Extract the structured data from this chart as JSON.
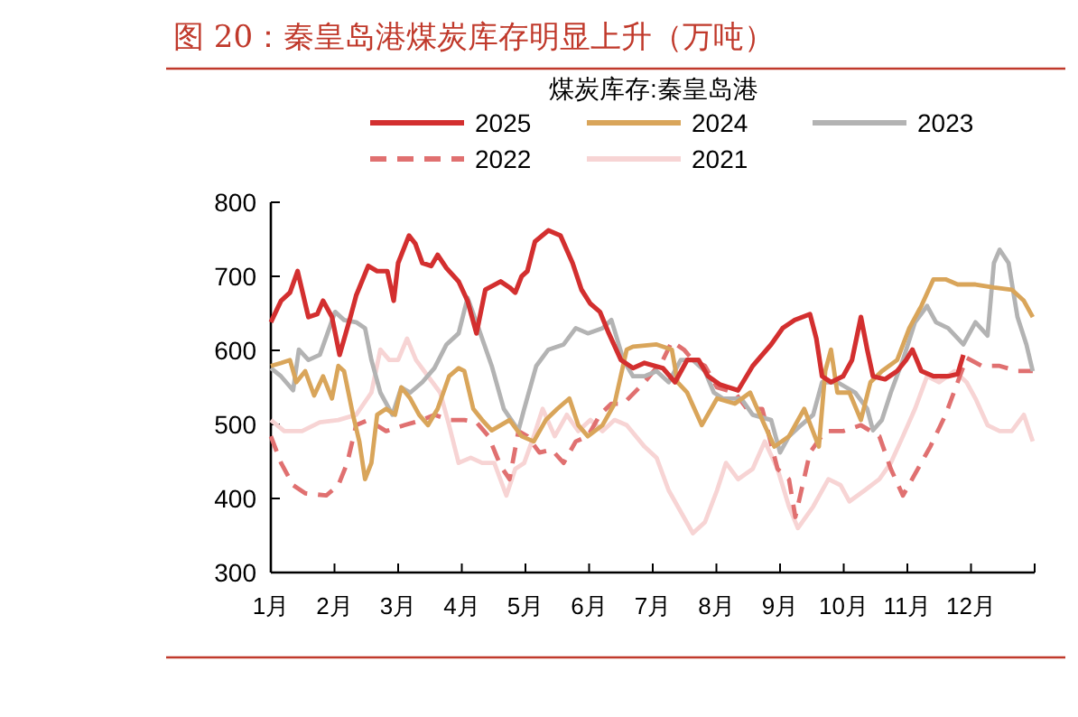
{
  "chart_data": {
    "type": "line",
    "title": "图 20：秦皇岛港煤炭库存明显上升（万吨）",
    "legend_title": "煤炭库存:秦皇岛港",
    "legend": "top",
    "grid": false,
    "marker": "none",
    "xlim": [
      1,
      13
    ],
    "xticks": [
      {
        "value": 1,
        "label": "1月"
      },
      {
        "value": 2,
        "label": "2月"
      },
      {
        "value": 3,
        "label": "3月"
      },
      {
        "value": 4,
        "label": "4月"
      },
      {
        "value": 5,
        "label": "5月"
      },
      {
        "value": 6,
        "label": "6月"
      },
      {
        "value": 7,
        "label": "7月"
      },
      {
        "value": 8,
        "label": "8月"
      },
      {
        "value": 9,
        "label": "9月"
      },
      {
        "value": 10,
        "label": "10月"
      },
      {
        "value": 11,
        "label": "11月"
      },
      {
        "value": 12,
        "label": "12月"
      },
      {
        "value": 13,
        "label": null
      }
    ],
    "ylim": [
      300,
      800
    ],
    "yticks": [
      300,
      400,
      500,
      600,
      700,
      800
    ],
    "series": [
      {
        "name": "2025",
        "color": "#d32f2f",
        "line_style": "solid",
        "x": [
          1,
          1.16,
          1.3,
          1.42,
          1.59,
          1.73,
          1.82,
          1.96,
          2.08,
          2.25,
          2.34,
          2.53,
          2.67,
          2.83,
          2.93,
          3.0,
          3.17,
          3.27,
          3.38,
          3.52,
          3.62,
          3.76,
          3.95,
          4.09,
          4.23,
          4.37,
          4.61,
          4.75,
          4.84,
          4.94,
          5.03,
          5.15,
          5.36,
          5.55,
          5.74,
          5.88,
          6.02,
          6.17,
          6.31,
          6.5,
          6.69,
          6.87,
          7.16,
          7.35,
          7.54,
          7.72,
          7.87,
          8.05,
          8.34,
          8.57,
          8.86,
          9.04,
          9.23,
          9.47,
          9.57,
          9.66,
          9.8,
          9.99,
          10.13,
          10.27,
          10.37,
          10.46,
          10.65,
          10.84,
          10.98,
          11.08,
          11.22,
          11.41,
          11.64,
          11.79,
          11.88
        ],
        "values": [
          638,
          667,
          678,
          707,
          645,
          649,
          667,
          645,
          594,
          645,
          674,
          714,
          707,
          707,
          667,
          718,
          755,
          744,
          718,
          714,
          729,
          711,
          693,
          667,
          623,
          682,
          693,
          685,
          678,
          700,
          707,
          747,
          762,
          755,
          718,
          682,
          663,
          652,
          623,
          587,
          576,
          583,
          576,
          557,
          587,
          587,
          565,
          554,
          546,
          579,
          608,
          630,
          641,
          649,
          616,
          565,
          557,
          565,
          587,
          645,
          601,
          565,
          561,
          572,
          587,
          601,
          572,
          565,
          565,
          568,
          594
        ]
      },
      {
        "name": "2024",
        "color": "#d9a55a",
        "line_style": "solid",
        "x": [
          1,
          1.16,
          1.3,
          1.4,
          1.54,
          1.68,
          1.82,
          1.96,
          2.06,
          2.15,
          2.29,
          2.39,
          2.48,
          2.58,
          2.67,
          2.81,
          2.95,
          3.05,
          3.19,
          3.33,
          3.47,
          3.62,
          3.8,
          3.95,
          4.04,
          4.18,
          4.32,
          4.47,
          4.61,
          4.75,
          4.94,
          5.13,
          5.32,
          5.5,
          5.69,
          5.83,
          5.98,
          6.21,
          6.4,
          6.59,
          6.69,
          7.06,
          7.3,
          7.39,
          7.54,
          7.77,
          8.01,
          8.29,
          8.53,
          8.72,
          8.91,
          9.14,
          9.38,
          9.61,
          9.71,
          9.8,
          9.9,
          10.09,
          10.27,
          10.42,
          10.6,
          10.84,
          11.03,
          11.22,
          11.41,
          11.6,
          11.79,
          12.07,
          12.36,
          12.64,
          12.83,
          12.97
        ],
        "values": [
          579,
          583,
          587,
          557,
          572,
          539,
          565,
          535,
          579,
          572,
          513,
          477,
          426,
          448,
          513,
          521,
          513,
          550,
          535,
          513,
          499,
          521,
          565,
          576,
          572,
          521,
          506,
          492,
          499,
          506,
          484,
          477,
          506,
          521,
          535,
          499,
          484,
          499,
          528,
          601,
          605,
          608,
          601,
          557,
          543,
          499,
          535,
          528,
          543,
          506,
          470,
          484,
          521,
          470,
          572,
          601,
          543,
          543,
          506,
          557,
          572,
          587,
          630,
          660,
          696,
          696,
          689,
          689,
          685,
          682,
          667,
          645
        ]
      },
      {
        "name": "2023",
        "color": "#b3b3b3",
        "line_style": "solid",
        "x": [
          1,
          1.16,
          1.35,
          1.44,
          1.59,
          1.77,
          2.01,
          2.15,
          2.34,
          2.48,
          2.58,
          2.72,
          2.91,
          3.05,
          3.19,
          3.38,
          3.57,
          3.76,
          3.95,
          4.09,
          4.23,
          4.47,
          4.66,
          4.89,
          4.98,
          5.17,
          5.36,
          5.6,
          5.79,
          5.98,
          6.21,
          6.35,
          6.54,
          6.69,
          6.87,
          7.06,
          7.25,
          7.44,
          7.63,
          7.82,
          7.96,
          8.1,
          8.39,
          8.57,
          8.86,
          9.0,
          9.14,
          9.33,
          9.52,
          9.66,
          9.9,
          10.18,
          10.37,
          10.46,
          10.6,
          10.74,
          10.93,
          11.12,
          11.31,
          11.45,
          11.64,
          11.88,
          12.07,
          12.26,
          12.36,
          12.45,
          12.59,
          12.73,
          12.87,
          12.97
        ],
        "values": [
          576,
          565,
          546,
          601,
          587,
          594,
          652,
          641,
          638,
          630,
          587,
          543,
          513,
          550,
          543,
          557,
          576,
          608,
          623,
          671,
          638,
          579,
          521,
          492,
          521,
          579,
          601,
          608,
          630,
          623,
          630,
          641,
          587,
          565,
          565,
          572,
          557,
          587,
          587,
          572,
          543,
          535,
          535,
          513,
          506,
          462,
          484,
          499,
          513,
          557,
          557,
          543,
          521,
          492,
          506,
          543,
          587,
          638,
          660,
          638,
          630,
          608,
          638,
          620,
          718,
          736,
          718,
          645,
          608,
          572
        ]
      },
      {
        "name": "2022",
        "color": "#e07070",
        "line_style": "dashed",
        "x": [
          1,
          1.16,
          1.35,
          1.54,
          1.87,
          2.06,
          2.2,
          2.34,
          2.53,
          2.81,
          3.1,
          3.38,
          3.57,
          3.8,
          4.04,
          4.23,
          4.42,
          4.61,
          4.75,
          4.89,
          5.03,
          5.22,
          5.41,
          5.6,
          5.79,
          5.98,
          6.17,
          6.35,
          6.54,
          6.87,
          7.16,
          7.3,
          7.49,
          7.63,
          7.82,
          8.01,
          8.29,
          8.48,
          8.72,
          8.96,
          9.14,
          9.24,
          9.47,
          9.71,
          9.99,
          10.27,
          10.56,
          10.74,
          10.93,
          11.12,
          11.36,
          11.6,
          11.79,
          11.93,
          12.17,
          12.45,
          12.73,
          12.97
        ],
        "values": [
          484,
          448,
          418,
          407,
          404,
          418,
          448,
          499,
          506,
          491,
          499,
          506,
          513,
          506,
          506,
          503,
          484,
          444,
          426,
          491,
          484,
          462,
          466,
          448,
          477,
          484,
          513,
          528,
          528,
          557,
          587,
          612,
          601,
          587,
          579,
          550,
          543,
          521,
          521,
          440,
          426,
          375,
          462,
          491,
          491,
          499,
          484,
          440,
          404,
          433,
          470,
          513,
          557,
          590,
          579,
          579,
          572,
          572
        ]
      },
      {
        "name": "2021",
        "color": "#f7d4d4",
        "line_style": "solid",
        "x": [
          1,
          1.21,
          1.49,
          1.77,
          2.06,
          2.34,
          2.58,
          2.72,
          2.86,
          3.0,
          3.14,
          3.28,
          3.47,
          3.66,
          3.8,
          3.95,
          4.14,
          4.32,
          4.51,
          4.7,
          4.84,
          4.98,
          5.13,
          5.27,
          5.46,
          5.65,
          5.83,
          6.02,
          6.21,
          6.4,
          6.59,
          6.87,
          7.06,
          7.25,
          7.44,
          7.63,
          7.82,
          8.01,
          8.15,
          8.34,
          8.57,
          8.76,
          8.96,
          9.14,
          9.28,
          9.52,
          9.76,
          9.95,
          10.09,
          10.33,
          10.56,
          10.74,
          10.93,
          11.12,
          11.31,
          11.5,
          11.74,
          11.93,
          12.07,
          12.26,
          12.45,
          12.64,
          12.83,
          12.97
        ],
        "values": [
          506,
          491,
          491,
          503,
          506,
          513,
          543,
          601,
          587,
          587,
          616,
          587,
          565,
          543,
          499,
          448,
          455,
          448,
          448,
          404,
          440,
          448,
          484,
          521,
          484,
          513,
          491,
          506,
          491,
          506,
          499,
          470,
          455,
          411,
          382,
          353,
          368,
          411,
          448,
          426,
          440,
          477,
          440,
          389,
          360,
          389,
          426,
          418,
          396,
          411,
          426,
          448,
          484,
          521,
          565,
          557,
          572,
          557,
          535,
          499,
          491,
          491,
          513,
          477
        ]
      }
    ]
  }
}
